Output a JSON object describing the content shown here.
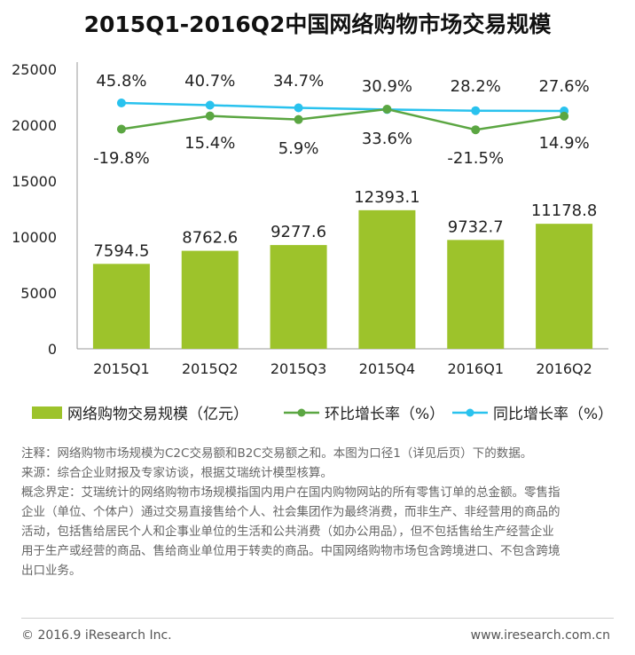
{
  "title": "2015Q1-2016Q2中国网络购物市场交易规模",
  "chart_data": {
    "type": "bar",
    "categories": [
      "2015Q1",
      "2015Q2",
      "2015Q3",
      "2015Q4",
      "2016Q1",
      "2016Q2"
    ],
    "y_ticks": [
      "25000",
      "20000",
      "15000",
      "10000",
      "5000",
      "0"
    ],
    "ylim": [
      0,
      25000
    ],
    "grid": false,
    "legend_position": "bottom",
    "series": [
      {
        "name": "网络购物交易规模（亿元）",
        "type": "bar",
        "color": "#9DC32B",
        "values": [
          7594.5,
          8762.6,
          9277.6,
          12393.1,
          9732.7,
          11178.8
        ],
        "labels": [
          "7594.5",
          "8762.6",
          "9277.6",
          "12393.1",
          "9732.7",
          "11178.8"
        ]
      },
      {
        "name": "环比增长率（%）",
        "type": "line",
        "color": "#5BA642",
        "values": [
          -19.8,
          15.4,
          5.9,
          33.6,
          -21.5,
          14.9
        ],
        "labels": [
          "-19.8%",
          "15.4%",
          "5.9%",
          "33.6%",
          "-21.5%",
          "14.9%"
        ]
      },
      {
        "name": "同比增长率（%）",
        "type": "line",
        "color": "#29C2EE",
        "values": [
          45.8,
          40.7,
          34.7,
          30.9,
          28.2,
          27.6
        ],
        "labels": [
          "45.8%",
          "40.7%",
          "34.7%",
          "30.9%",
          "28.2%",
          "27.6%"
        ]
      }
    ]
  },
  "notes": {
    "line1": "注释：网络购物市场规模为C2C交易额和B2C交易额之和。本图为口径1（详见后页）下的数据。",
    "line2": "来源：综合企业财报及专家访谈，根据艾瑞统计模型核算。",
    "line3": "概念界定：艾瑞统计的网络购物市场规模指国内用户在国内购物网站的所有零售订单的总金额。零售指",
    "line4": "企业（单位、个体户）通过交易直接售给个人、社会集团作为最终消费，而非生产、非经营用的商品的",
    "line5": "活动，包括售给居民个人和企事业单位的生活和公共消费（如办公用品），但不包括售给生产经营企业",
    "line6": "用于生产或经营的商品、售给商业单位用于转卖的商品。中国网络购物市场包含跨境进口、不包含跨境",
    "line7": "出口业务。"
  },
  "footer": {
    "copyright": "© 2016.9 iResearch Inc.",
    "website": "www.iresearch.com.cn"
  }
}
